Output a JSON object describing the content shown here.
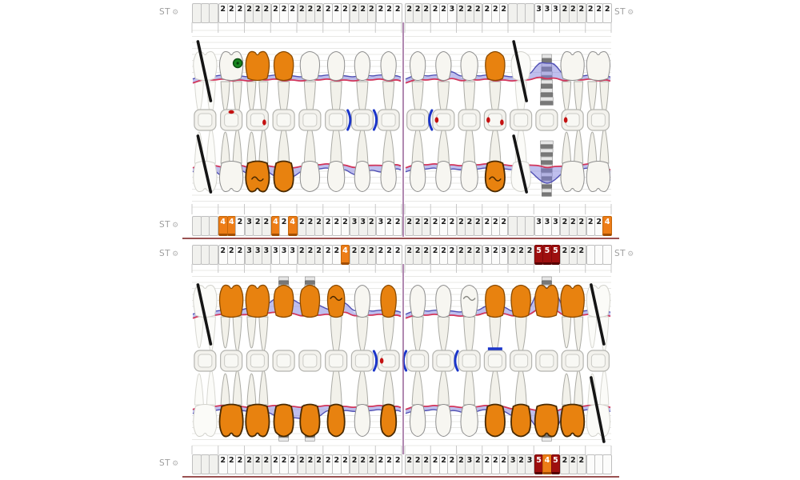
{
  "labels": {
    "st": "ST",
    "gear_icon": "⚙"
  },
  "colors": {
    "crown_orange": "#E8820F",
    "crown_orange_outline": "#4A2A00",
    "cell_orange": "#ED7D17",
    "cell_dark_red": "#9E0F0F",
    "band_fill": "rgba(128,128,222,0.5)",
    "band_edge": "#5050B4",
    "gingival_margin_line": "#D2355A",
    "caries_red": "#C41111",
    "contact_blue": "#1B35C9",
    "furcation_green": "#17861F",
    "missing_slash": "#151515",
    "implant_light": "#E6E6E6",
    "implant_dark": "#787878",
    "grid_line": "#E0E0DE",
    "midline_purple": "#9E6C9E",
    "rule_maroon": "#9A5252"
  },
  "st_rows": [
    {
      "id": "upper-buccal",
      "label_left": true,
      "label_right": true,
      "left": [
        "",
        "",
        "",
        "2",
        "2",
        "2",
        "2",
        "2",
        "2",
        "2",
        "2",
        "2",
        "2",
        "2",
        "2",
        "2",
        "2",
        "2",
        "2",
        "2",
        "2",
        "2",
        "2",
        "2"
      ],
      "right": [
        "2",
        "2",
        "2",
        "2",
        "2",
        "3",
        "2",
        "2",
        "2",
        "2",
        "2",
        "2",
        "",
        "",
        "",
        "3",
        "3",
        "3",
        "2",
        "2",
        "2",
        "2",
        "2",
        "2"
      ]
    },
    {
      "id": "upper-palatal",
      "label_left": true,
      "label_right": false,
      "left": [
        "",
        "",
        "",
        {
          "v": "4",
          "s": "o"
        },
        {
          "v": "4",
          "s": "o"
        },
        "2",
        "3",
        "2",
        "2",
        {
          "v": "4",
          "s": "o"
        },
        "2",
        {
          "v": "4",
          "s": "o"
        },
        "2",
        "2",
        "2",
        "2",
        "2",
        "2",
        "3",
        "3",
        "2",
        "3",
        "2",
        "2"
      ],
      "right": [
        "2",
        "2",
        "2",
        "2",
        "2",
        "2",
        "2",
        "2",
        "2",
        "2",
        "2",
        "2",
        "",
        "",
        "",
        "3",
        "3",
        "3",
        "2",
        "2",
        "2",
        "2",
        "2",
        {
          "v": "4",
          "s": "o"
        }
      ]
    },
    {
      "id": "lower-lingual",
      "label_left": true,
      "label_right": true,
      "left": [
        "",
        "",
        "",
        "2",
        "2",
        "2",
        "3",
        "3",
        "3",
        "3",
        "3",
        "3",
        "2",
        "2",
        "2",
        "2",
        "2",
        {
          "v": "4",
          "s": "o"
        },
        "2",
        "2",
        "2",
        "2",
        "2",
        "2"
      ],
      "right": [
        "2",
        "2",
        "2",
        "2",
        "2",
        "2",
        "2",
        "2",
        "2",
        "3",
        "2",
        "3",
        "2",
        "2",
        "2",
        {
          "v": "5",
          "s": "r"
        },
        {
          "v": "5",
          "s": "r"
        },
        {
          "v": "5",
          "s": "r"
        },
        "2",
        "2",
        "2",
        "",
        "",
        ""
      ]
    },
    {
      "id": "lower-buccal",
      "label_left": true,
      "label_right": false,
      "left": [
        "",
        "",
        "",
        "2",
        "2",
        "2",
        "2",
        "2",
        "2",
        "2",
        "2",
        "2",
        "2",
        "2",
        "2",
        "2",
        "2",
        "2",
        "2",
        "2",
        "2",
        "2",
        "2",
        "2"
      ],
      "right": [
        "2",
        "2",
        "2",
        "2",
        "2",
        "2",
        "2",
        "3",
        "2",
        "2",
        "2",
        "2",
        "3",
        "2",
        "3",
        {
          "v": "5",
          "s": "r"
        },
        {
          "v": "4",
          "s": "o"
        },
        {
          "v": "5",
          "s": "r"
        },
        "2",
        "2",
        "2",
        "",
        "",
        ""
      ]
    }
  ],
  "arches": {
    "upper": {
      "left": [
        {
          "type": "molar",
          "state": "missing"
        },
        {
          "type": "molar",
          "state": "normal",
          "marker": "furcation-green"
        },
        {
          "type": "molar",
          "state": "crown",
          "squiggle": "B"
        },
        {
          "type": "premolar",
          "state": "crown"
        },
        {
          "type": "premolar",
          "state": "normal"
        },
        {
          "type": "canine",
          "state": "normal"
        },
        {
          "type": "incisor",
          "state": "normal"
        },
        {
          "type": "incisor",
          "state": "normal"
        }
      ],
      "right": [
        {
          "type": "incisor",
          "state": "normal"
        },
        {
          "type": "incisor",
          "state": "normal"
        },
        {
          "type": "canine",
          "state": "normal"
        },
        {
          "type": "premolar",
          "state": "crown",
          "squiggle": "B"
        },
        {
          "type": "premolar",
          "state": "missing"
        },
        {
          "type": "molar",
          "state": "implant"
        },
        {
          "type": "molar",
          "state": "normal"
        },
        {
          "type": "molar",
          "state": "normal"
        }
      ],
      "occlusal_marks": [
        {
          "i": 1,
          "m": [
            "dot-top"
          ]
        },
        {
          "i": 2,
          "m": [
            "dot-right"
          ]
        },
        {
          "i": 5,
          "m": [
            "paren-right"
          ]
        },
        {
          "i": 6,
          "m": [
            "paren-right"
          ]
        },
        {
          "i": 9,
          "m": [
            "paren-left",
            "dot-left"
          ]
        },
        {
          "i": 11,
          "m": [
            "dot-left",
            "dot-right"
          ]
        },
        {
          "i": 14,
          "m": [
            "dot-left"
          ]
        }
      ]
    },
    "lower": {
      "left": [
        {
          "type": "molar",
          "state": "missing",
          "slash": "A"
        },
        {
          "type": "molar",
          "state": "crown"
        },
        {
          "type": "molar",
          "state": "crown"
        },
        {
          "type": "premolar",
          "state": "implant-crown"
        },
        {
          "type": "premolar",
          "state": "implant-crown"
        },
        {
          "type": "canine",
          "state": "crown",
          "squiggle": "A"
        },
        {
          "type": "incisor",
          "state": "normal"
        },
        {
          "type": "incisor",
          "state": "crown"
        }
      ],
      "right": [
        {
          "type": "incisor",
          "state": "normal"
        },
        {
          "type": "incisor",
          "state": "normal"
        },
        {
          "type": "canine",
          "state": "normal",
          "squiggle": "A"
        },
        {
          "type": "premolar",
          "state": "crown"
        },
        {
          "type": "premolar",
          "state": "crown"
        },
        {
          "type": "molar",
          "state": "implant-crown"
        },
        {
          "type": "molar",
          "state": "crown"
        },
        {
          "type": "molar",
          "state": "missing"
        }
      ],
      "occlusal_marks": [
        {
          "i": 6,
          "m": [
            "paren-right"
          ]
        },
        {
          "i": 7,
          "m": [
            "dot-left"
          ]
        },
        {
          "i": 8,
          "m": [
            "paren-left"
          ]
        },
        {
          "i": 10,
          "m": [
            "paren-left"
          ]
        },
        {
          "i": 11,
          "m": [
            "bar-top"
          ]
        }
      ]
    }
  }
}
